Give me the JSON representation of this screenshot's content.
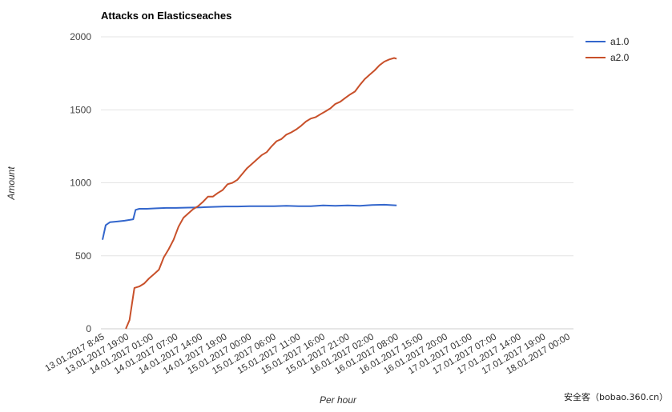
{
  "chart_data": {
    "type": "line",
    "title": "Attacks on Elasticseaches",
    "xlabel": "Per hour",
    "ylabel": "Amount",
    "ylim": [
      0,
      2000
    ],
    "yticks": [
      0,
      500,
      1000,
      1500,
      2000
    ],
    "grid": true,
    "legend_position": "top-right",
    "categories": [
      "13.01.2017 8:45",
      "13.01.2017 19:00",
      "14.01.2017 01:00",
      "14.01.2017 07:00",
      "14.01.2017 14:00",
      "14.01.2017 19:00",
      "15.01.2017 00:00",
      "15.01.2017 06:00",
      "15.01.2017 11:00",
      "15.01.2017 16:00",
      "15.01.2017 21:00",
      "16.01.2017 02:00",
      "16.01.2017 08:00",
      "16.01.2017 15:00",
      "16.01.2017 20:00",
      "17.01.2017 01:00",
      "17.01.2017 07:00",
      "17.01.2017 14:00",
      "17.01.2017 19:00",
      "18.01.2017 00:00"
    ],
    "series": [
      {
        "name": "a1.0",
        "color": "#3366cc",
        "x": [
          0,
          0.13,
          0.3,
          0.6,
          0.9,
          1.25,
          1.35,
          1.5,
          1.8,
          2.2,
          2.6,
          3.0,
          3.5,
          4.0,
          4.5,
          5.0,
          5.5,
          6.0,
          6.5,
          7.0,
          7.5,
          8.0,
          8.5,
          9.0,
          9.5,
          10.0,
          10.5,
          11.0,
          11.5,
          12.0
        ],
        "values": [
          610,
          710,
          730,
          735,
          740,
          750,
          815,
          822,
          822,
          825,
          828,
          828,
          830,
          832,
          835,
          838,
          838,
          840,
          840,
          840,
          842,
          840,
          840,
          845,
          843,
          845,
          843,
          848,
          850,
          845
        ]
      },
      {
        "name": "a2.0",
        "color": "#c8502a",
        "x": [
          0.95,
          1.1,
          1.3,
          1.5,
          1.7,
          1.9,
          2.1,
          2.3,
          2.5,
          2.7,
          2.9,
          3.1,
          3.3,
          3.5,
          3.7,
          3.9,
          4.1,
          4.3,
          4.5,
          4.7,
          4.9,
          5.1,
          5.3,
          5.5,
          5.7,
          5.9,
          6.1,
          6.3,
          6.5,
          6.7,
          6.9,
          7.1,
          7.3,
          7.5,
          7.7,
          7.9,
          8.1,
          8.3,
          8.5,
          8.7,
          8.9,
          9.1,
          9.3,
          9.5,
          9.7,
          9.9,
          10.1,
          10.3,
          10.5,
          10.7,
          10.9,
          11.1,
          11.3,
          11.5,
          11.7,
          11.9,
          12.0
        ],
        "values": [
          0,
          60,
          280,
          290,
          310,
          345,
          375,
          405,
          490,
          545,
          610,
          700,
          760,
          790,
          820,
          840,
          870,
          905,
          905,
          930,
          950,
          990,
          1000,
          1020,
          1060,
          1100,
          1130,
          1160,
          1190,
          1210,
          1250,
          1285,
          1300,
          1330,
          1345,
          1365,
          1390,
          1420,
          1440,
          1450,
          1470,
          1490,
          1510,
          1540,
          1555,
          1580,
          1605,
          1625,
          1670,
          1710,
          1740,
          1770,
          1805,
          1830,
          1845,
          1855,
          1850
        ]
      }
    ]
  },
  "watermark_text": "安全客（bobao.360.cn）"
}
